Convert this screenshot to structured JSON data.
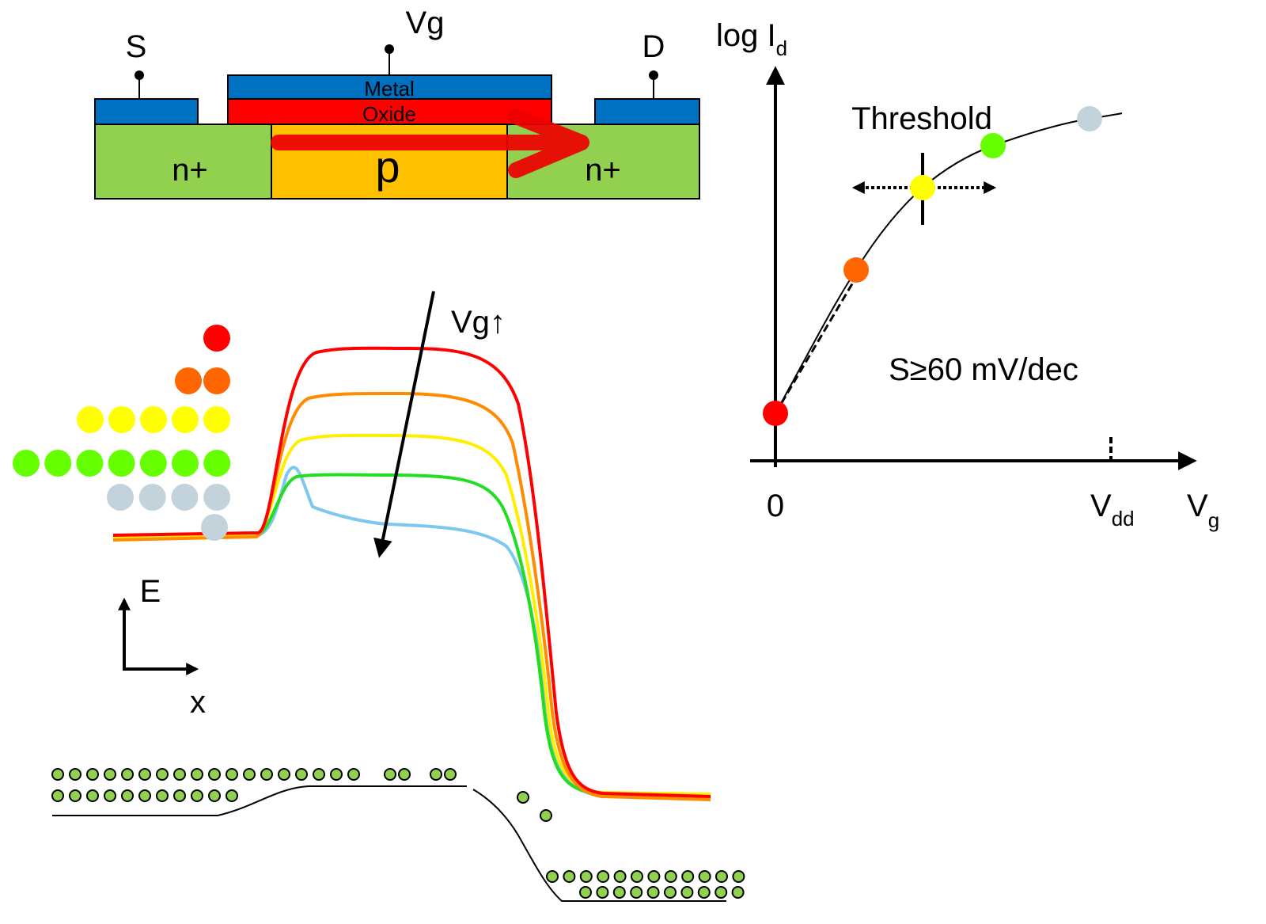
{
  "transistor": {
    "source": "S",
    "gate": "Vg",
    "drain": "D",
    "metal": "Metal",
    "oxide": "Oxide",
    "source_region": "n+",
    "channel": "p",
    "drain_region": "n+"
  },
  "iv_plot": {
    "y_axis": {
      "text": "log I",
      "sub": "d"
    },
    "threshold": "Threshold",
    "slope": "S≥60 mV/dec",
    "origin": "0",
    "vdd": {
      "text": "V",
      "sub": "dd"
    },
    "x_axis": {
      "text": "V",
      "sub": "g"
    }
  },
  "band_diagram": {
    "gate_arrow": "Vg↑",
    "energy": "E",
    "position": "x"
  }
}
